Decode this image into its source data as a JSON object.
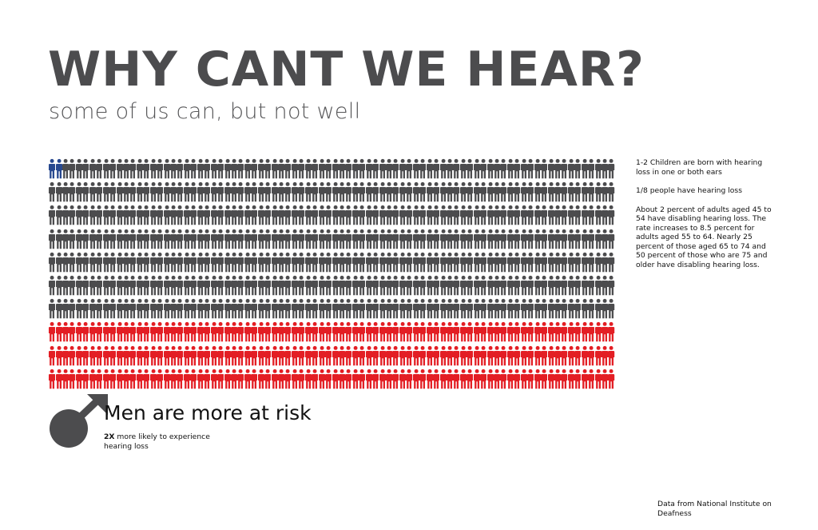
{
  "header": {
    "title": "WHY CANT WE HEAR?",
    "subtitle": "some of us can, but not well"
  },
  "grid": {
    "rows": 10,
    "columns": 84,
    "highlighted_first_row_count": 2,
    "red_row_count": 3,
    "colors": {
      "highlight": "#27488f",
      "base": "#4c4c4e",
      "red": "#e31e24"
    },
    "icon": "person-icon"
  },
  "stats": {
    "children": "1-2 Children are born with hearing loss in one or both ears",
    "ratio": "1/8 people have hearing loss",
    "adults": "About 2 percent of adults aged 45 to 54 have disabling hearing loss. The rate increases to 8.5 percent for adults aged 55 to 64. Nearly 25 percent of those aged 65 to 74 and 50 percent of those who are 75 and older have disabling hearing loss."
  },
  "risk": {
    "icon": "male-symbol-icon",
    "heading": "Men are more at risk",
    "multiplier": "2X",
    "detail": " more likely to experience hearing loss"
  },
  "source": "Data from  National Institute on Deafness"
}
